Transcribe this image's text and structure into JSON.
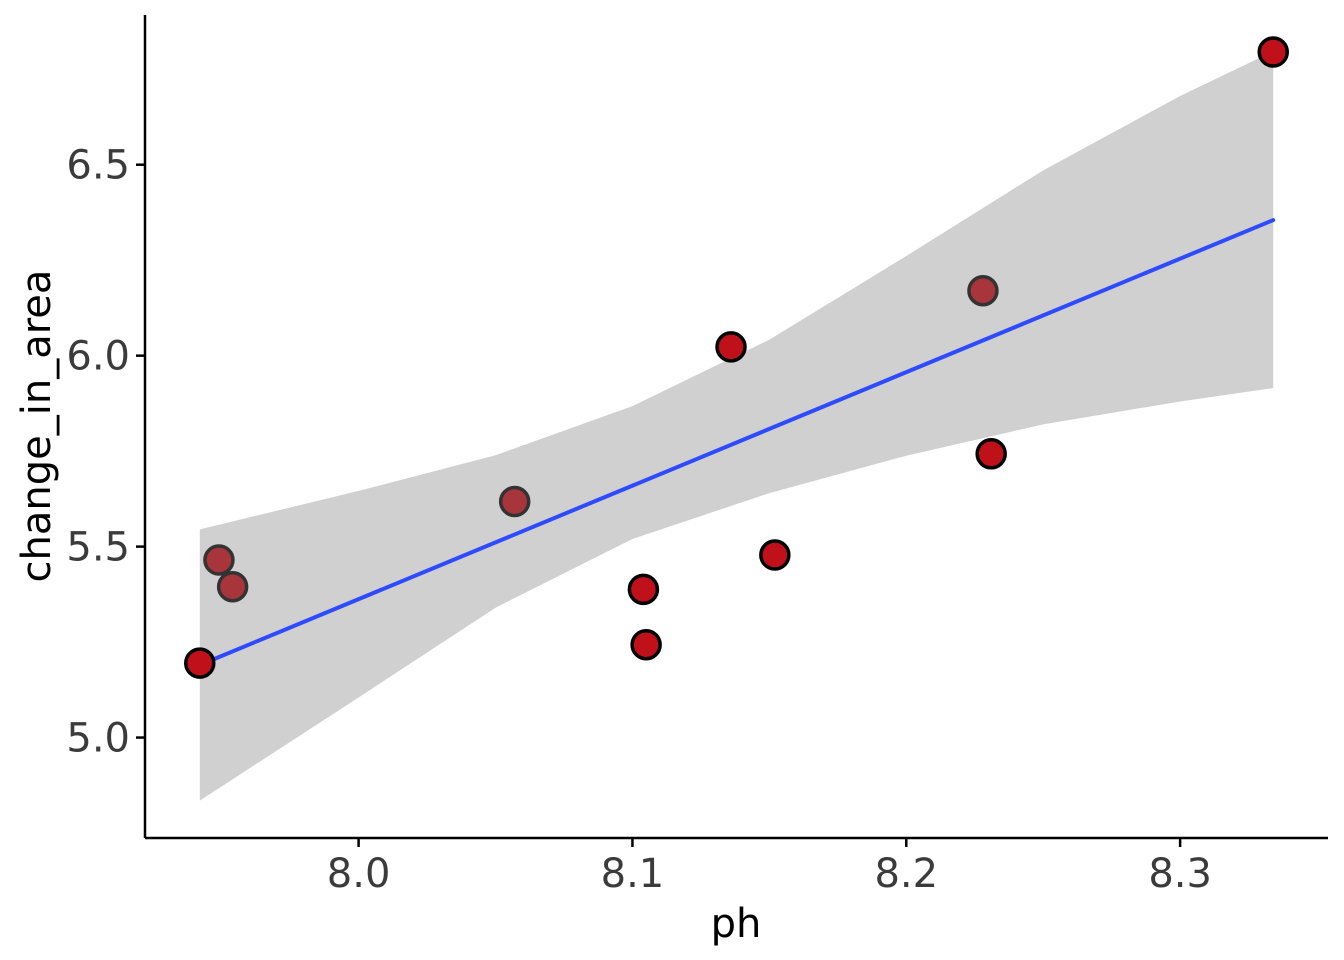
{
  "chart_data": {
    "type": "scatter",
    "title": "",
    "xlabel": "ph",
    "ylabel": "change_in_area",
    "xlim": [
      7.922,
      8.354
    ],
    "ylim": [
      4.737,
      6.892
    ],
    "x_ticks": [
      8.0,
      8.1,
      8.2,
      8.3
    ],
    "x_tick_labels": [
      "8.0",
      "8.1",
      "8.2",
      "8.3"
    ],
    "y_ticks": [
      5.0,
      5.5,
      6.0,
      6.5
    ],
    "y_tick_labels": [
      "5.0",
      "5.5",
      "6.0",
      "6.5"
    ],
    "grid": false,
    "points": [
      {
        "x": 7.942,
        "y": 5.195,
        "shade": "dark"
      },
      {
        "x": 7.949,
        "y": 5.465,
        "shade": "light"
      },
      {
        "x": 7.954,
        "y": 5.395,
        "shade": "light"
      },
      {
        "x": 8.057,
        "y": 5.618,
        "shade": "light"
      },
      {
        "x": 8.104,
        "y": 5.388,
        "shade": "dark"
      },
      {
        "x": 8.105,
        "y": 5.243,
        "shade": "dark"
      },
      {
        "x": 8.136,
        "y": 6.023,
        "shade": "dark"
      },
      {
        "x": 8.152,
        "y": 5.478,
        "shade": "dark"
      },
      {
        "x": 8.228,
        "y": 6.17,
        "shade": "light"
      },
      {
        "x": 8.231,
        "y": 5.743,
        "shade": "dark"
      },
      {
        "x": 8.334,
        "y": 6.795,
        "shade": "dark"
      }
    ],
    "fit_line": {
      "type": "linear",
      "x": [
        7.942,
        8.334
      ],
      "y": [
        5.19,
        6.355
      ]
    },
    "confidence_band": {
      "x": [
        7.942,
        8.0,
        8.05,
        8.1,
        8.15,
        8.2,
        8.25,
        8.3,
        8.334
      ],
      "upper": [
        5.545,
        5.646,
        5.739,
        5.868,
        6.042,
        6.261,
        6.485,
        6.68,
        6.797
      ],
      "lower": [
        4.835,
        5.105,
        5.34,
        5.52,
        5.64,
        5.738,
        5.82,
        5.88,
        5.915
      ]
    },
    "colors": {
      "point_fill": "#c0111a",
      "point_fill_light": "#a8353c",
      "point_stroke": "#000000",
      "fit_line": "#2e4aff",
      "band": "#d0d0d0",
      "axis": "#000000"
    }
  }
}
